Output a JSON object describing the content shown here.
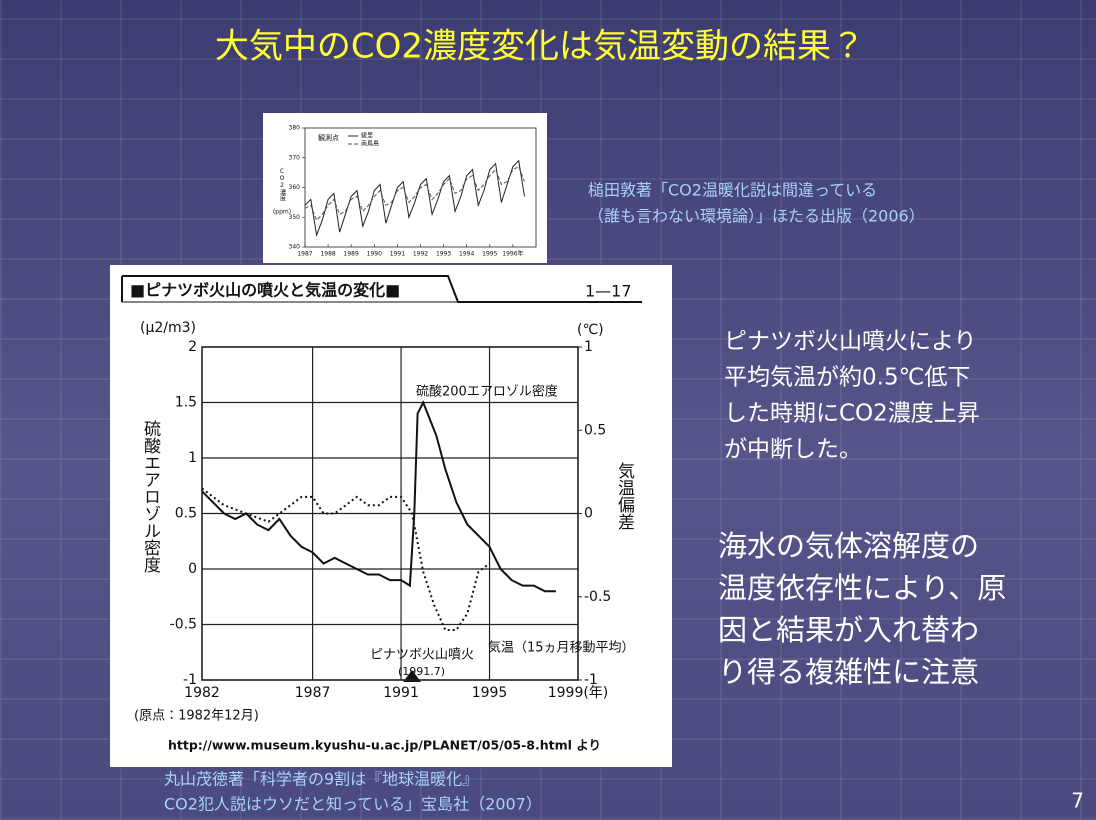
{
  "slide": {
    "title": "大気中のCO2濃度変化は気温変動の結果？",
    "citation_top": [
      "槌田敦著「CO2温暖化説は間違っている",
      "（誰も言わない環境論）」ほたる出版（2006）"
    ],
    "note_1": [
      "ピナツボ火山噴火により",
      "平均気温が約0.5℃低下",
      "した時期にCO2濃度上昇",
      "が中断した。"
    ],
    "note_2": [
      "海水の気体溶解度の",
      "温度依存性により、原",
      "因と結果が入れ替わ",
      "り得る複雑性に注意"
    ],
    "citation_bottom": [
      "丸山茂徳著「科学者の9割は『地球温暖化』",
      "CO2犯人説はウソだと知っている」宝島社（2007）"
    ],
    "page_number": "7"
  },
  "chart_data": [
    {
      "type": "line",
      "y_label": "CO2濃度",
      "y_unit": "(ppm)",
      "legend_title": "観測点",
      "x": [
        1987,
        1987.25,
        1987.5,
        1987.75,
        1988,
        1988.25,
        1988.5,
        1988.75,
        1989,
        1989.25,
        1989.5,
        1989.75,
        1990,
        1990.25,
        1990.5,
        1990.75,
        1991,
        1991.25,
        1991.5,
        1991.75,
        1992,
        1992.25,
        1992.5,
        1992.75,
        1993,
        1993.25,
        1993.5,
        1993.75,
        1994,
        1994.25,
        1994.5,
        1994.75,
        1995,
        1995.25,
        1995.5,
        1995.75,
        1996,
        1996.25,
        1996.5
      ],
      "series": [
        {
          "name": "綾里",
          "color": "#222222",
          "dash": "solid",
          "values": [
            354,
            356,
            344,
            349,
            356,
            358,
            345,
            351,
            357,
            359,
            347,
            352,
            359,
            361,
            348,
            354,
            360,
            362,
            350,
            355,
            361,
            363,
            351,
            356,
            362,
            364,
            352,
            357,
            364,
            366,
            354,
            359,
            366,
            368,
            355,
            361,
            367,
            369,
            357
          ]
        },
        {
          "name": "南鳥島",
          "color": "#555555",
          "dash": "dashed",
          "values": [
            353,
            354,
            349,
            351,
            354,
            356,
            351,
            352,
            356,
            357,
            352,
            354,
            357,
            359,
            354,
            355,
            359,
            360,
            355,
            357,
            360,
            361,
            356,
            358,
            361,
            363,
            358,
            359,
            363,
            364,
            359,
            361,
            364,
            366,
            361,
            362,
            366,
            367,
            362
          ]
        }
      ],
      "xlim": [
        1987,
        1997
      ],
      "xticks": [
        1987,
        1988,
        1989,
        1990,
        1991,
        1992,
        1993,
        1994,
        1995,
        {
          "value": 1996,
          "label": "1996年"
        }
      ],
      "ylim": [
        340,
        380
      ],
      "yticks": [
        340,
        350,
        360,
        370,
        380
      ],
      "grid": false
    },
    {
      "type": "line",
      "header_title": "■ピナツボ火山の噴火と気温の変化■",
      "header_code": "1—17",
      "y_label": "硫酸エアロゾル密度",
      "y_unit": "(μ2/m3)",
      "y2_label": "気温偏差",
      "y2_unit": "(℃)",
      "annotations": [
        "硫酸200エアロゾル密度",
        "気温（15ヵ月移動平均）",
        "ピナツボ火山噴火",
        "(1991.7)"
      ],
      "origin_note": "(原点：1982年12月)",
      "source": "http://www.museum.kyushu-u.ac.jp/PLANET/05/05-8.html より",
      "series": [
        {
          "color": "#111111",
          "dash": "solid",
          "x": [
            1982,
            1982.5,
            1983,
            1983.5,
            1984,
            1984.5,
            1985,
            1985.5,
            1986,
            1986.5,
            1987,
            1987.5,
            1988,
            1988.5,
            1989,
            1989.5,
            1990,
            1990.5,
            1991,
            1991.4,
            1991.6,
            1991.75,
            1992,
            1992.3,
            1992.6,
            1993,
            1993.5,
            1994,
            1994.5,
            1995,
            1995.5,
            1996,
            1996.5,
            1997,
            1997.5,
            1998
          ],
          "values": [
            0.7,
            0.6,
            0.5,
            0.45,
            0.5,
            0.4,
            0.35,
            0.45,
            0.3,
            0.2,
            0.15,
            0.05,
            0.1,
            0.05,
            0,
            -0.05,
            -0.05,
            -0.1,
            -0.1,
            -0.15,
            0.5,
            1.4,
            1.5,
            1.35,
            1.2,
            0.9,
            0.6,
            0.4,
            0.3,
            0.2,
            0,
            -0.1,
            -0.15,
            -0.15,
            -0.2,
            -0.2
          ]
        },
        {
          "color": "#111111",
          "dash": "dotted",
          "axis": "y2",
          "x": [
            1982,
            1983,
            1984,
            1985,
            1986,
            1986.5,
            1987,
            1987.5,
            1988,
            1988.5,
            1989,
            1989.5,
            1990,
            1990.5,
            1991,
            1991.5,
            1992,
            1992.5,
            1993,
            1993.5,
            1994,
            1994.5,
            1995
          ],
          "values": [
            0.15,
            0.05,
            0,
            -0.05,
            0.05,
            0.1,
            0.1,
            0,
            0,
            0.05,
            0.1,
            0.05,
            0.05,
            0.1,
            0.1,
            0,
            -0.35,
            -0.55,
            -0.7,
            -0.7,
            -0.6,
            -0.35,
            -0.3
          ]
        }
      ],
      "xlim": [
        1982,
        1999
      ],
      "xticks": [
        1982,
        1987,
        1991,
        1995,
        {
          "value": 1999,
          "label": "1999(年)"
        }
      ],
      "ylim": [
        -1,
        2
      ],
      "yticks": [
        -1,
        -0.5,
        0,
        0.5,
        1,
        1.5,
        2
      ],
      "y2lim": [
        -1,
        1
      ],
      "y2ticks": [
        -1,
        -0.5,
        0,
        0.5,
        1
      ],
      "grid": true
    }
  ]
}
